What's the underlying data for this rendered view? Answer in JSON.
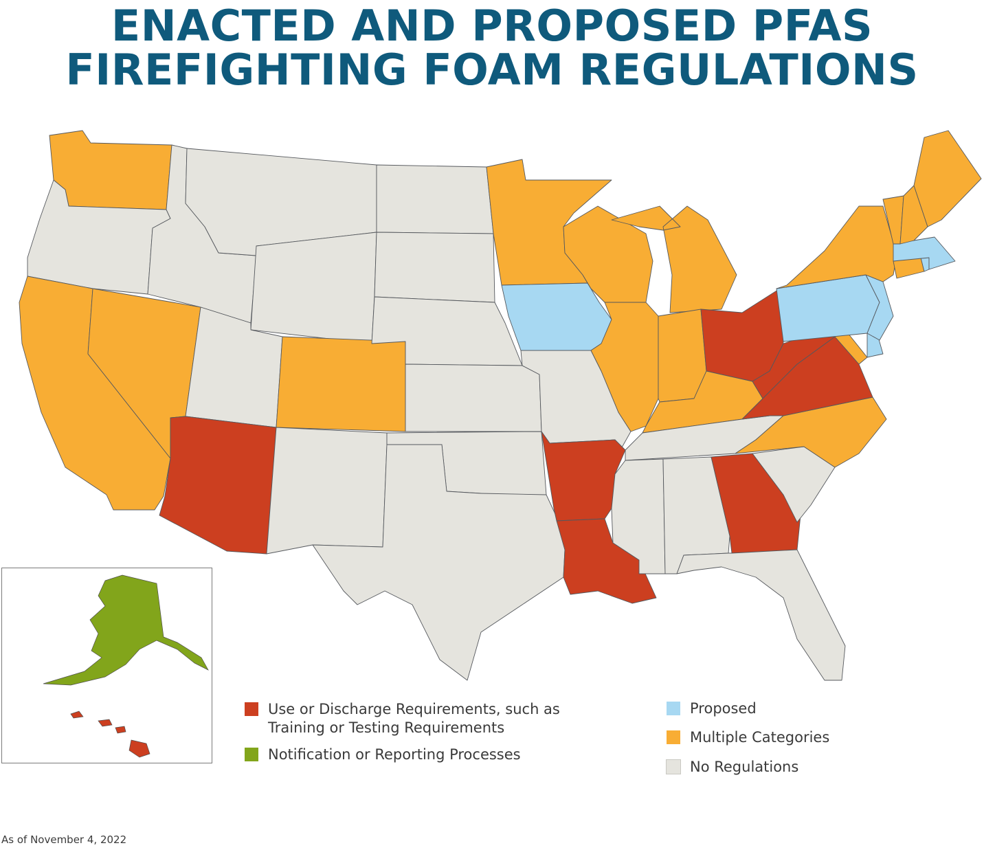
{
  "title_line1": "ENACTED AND PROPOSED PFAS",
  "title_line2": "FIREFIGHTING FOAM REGULATIONS",
  "colors": {
    "use_discharge": "#cc3f20",
    "notification": "#82a51b",
    "proposed": "#a7d8f2",
    "multiple": "#f8ad34",
    "none": "#e5e4de"
  },
  "legend": [
    {
      "key": "use_discharge",
      "label": "Use or Discharge Requirements, such as\nTraining or Testing Requirements"
    },
    {
      "key": "notification",
      "label": "Notification or Reporting Processes"
    },
    {
      "key": "proposed",
      "label": "Proposed"
    },
    {
      "key": "multiple",
      "label": "Multiple Categories"
    },
    {
      "key": "none",
      "label": "No Regulations"
    }
  ],
  "state_categories": {
    "AK": "notification",
    "HI": "use_discharge",
    "WA": "multiple",
    "OR": "none",
    "CA": "multiple",
    "NV": "multiple",
    "ID": "none",
    "MT": "none",
    "WY": "none",
    "UT": "none",
    "CO": "multiple",
    "AZ": "use_discharge",
    "NM": "none",
    "ND": "none",
    "SD": "none",
    "NE": "none",
    "KS": "none",
    "OK": "none",
    "TX": "none",
    "MN": "multiple",
    "IA": "proposed",
    "MO": "none",
    "AR": "use_discharge",
    "LA": "use_discharge",
    "WI": "multiple",
    "IL": "multiple",
    "MI": "multiple",
    "IN": "multiple",
    "OH": "use_discharge",
    "KY": "multiple",
    "TN": "none",
    "MS": "none",
    "AL": "none",
    "GA": "use_discharge",
    "FL": "none",
    "SC": "none",
    "NC": "multiple",
    "VA": "use_discharge",
    "WV": "use_discharge",
    "MD": "multiple",
    "DE": "proposed",
    "NJ": "proposed",
    "PA": "proposed",
    "NY": "multiple",
    "CT": "multiple",
    "RI": "proposed",
    "MA": "proposed",
    "VT": "multiple",
    "NH": "multiple",
    "ME": "multiple"
  },
  "footnote": "As of November 4, 2022"
}
